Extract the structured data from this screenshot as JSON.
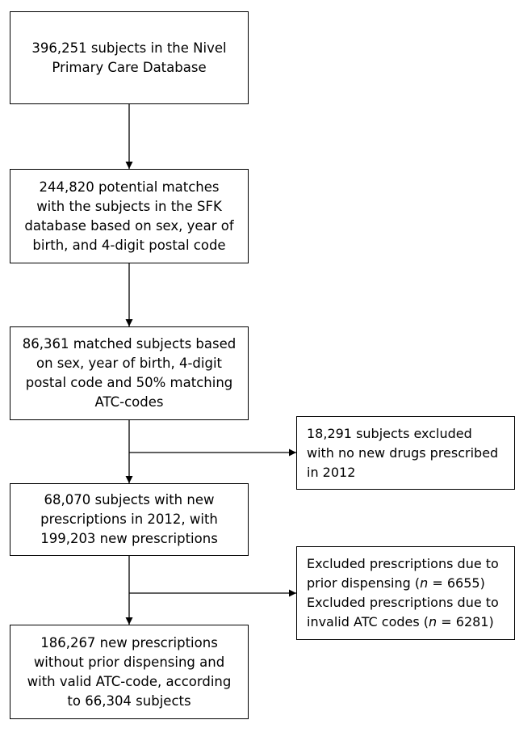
{
  "flowchart": {
    "box1": {
      "lines": [
        "396,251 subjects in the Nivel",
        "Primary Care Database"
      ]
    },
    "box2": {
      "lines": [
        "244,820 potential matches",
        "with the subjects in the SFK",
        "database based on sex, year of",
        "birth, and 4-digit postal code"
      ]
    },
    "box3": {
      "lines": [
        "86,361 matched subjects based",
        "on sex, year of birth, 4-digit",
        "postal code and 50% matching",
        "ATC-codes"
      ]
    },
    "exclusion1": {
      "lines": [
        "18,291 subjects excluded",
        "with no new drugs prescribed",
        "in 2012"
      ]
    },
    "box4": {
      "lines": [
        "68,070 subjects with new",
        "prescriptions in 2012, with",
        "199,203 new prescriptions"
      ]
    },
    "exclusion2": {
      "line1": "Excluded prescriptions due to",
      "line2_pre": "prior dispensing (",
      "line2_n": "n",
      "line2_post": " = 6655)",
      "line3": "Excluded prescriptions due to",
      "line4_pre": "invalid ATC codes (",
      "line4_n": "n",
      "line4_post": " = 6281)"
    },
    "box5": {
      "lines": [
        "186,267 new prescriptions",
        "without prior dispensing and",
        "with valid ATC-code, according",
        "to 66,304 subjects"
      ]
    }
  }
}
